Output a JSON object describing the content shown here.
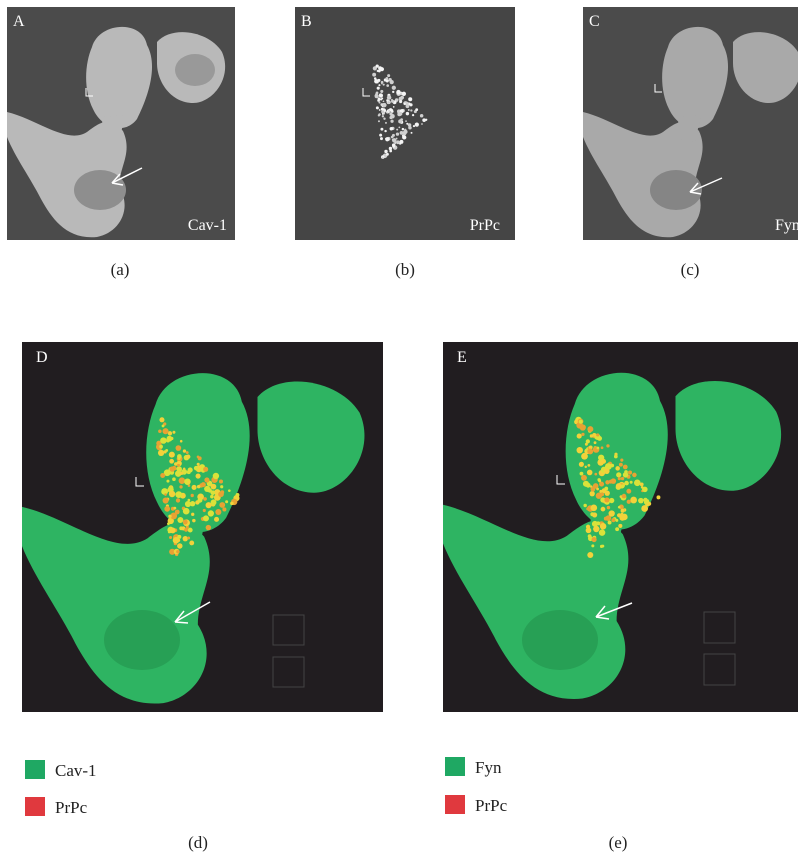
{
  "panels": [
    {
      "letter": "A",
      "label": "Cav-1",
      "caption": "(a)"
    },
    {
      "letter": "B",
      "label": "PrPc",
      "caption": "(b)"
    },
    {
      "letter": "C",
      "label": "Fyn",
      "caption": "(c)"
    }
  ],
  "overlays": [
    {
      "letter": "D",
      "caption": "(d)",
      "legend": [
        {
          "label": "Cav-1",
          "color": "#1fa863"
        },
        {
          "label": "PrPc",
          "color": "#e0393e"
        }
      ]
    },
    {
      "letter": "E",
      "caption": "(e)",
      "legend": [
        {
          "label": "Fyn",
          "color": "#1fa863"
        },
        {
          "label": "PrPc",
          "color": "#e0393e"
        }
      ]
    }
  ]
}
